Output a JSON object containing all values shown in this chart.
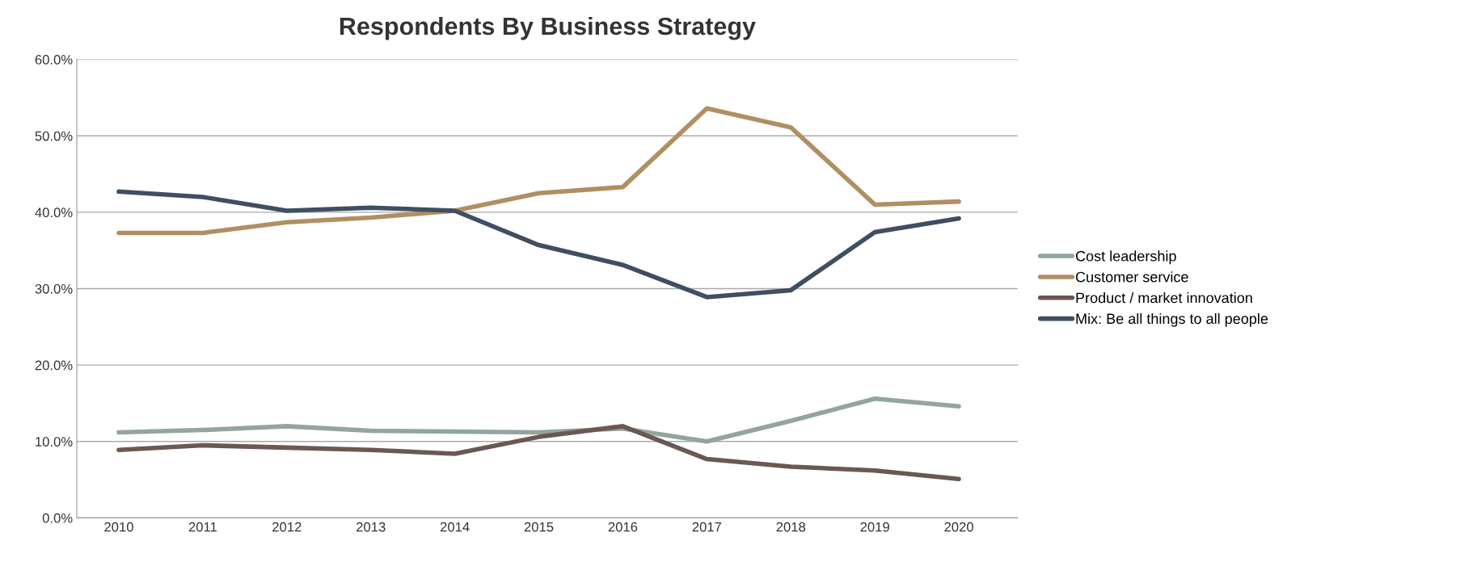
{
  "chart_data": {
    "type": "line",
    "title": "Respondents By Business Strategy",
    "categories": [
      "2010",
      "2011",
      "2012",
      "2013",
      "2014",
      "2015",
      "2016",
      "2017",
      "2018",
      "2019",
      "2020"
    ],
    "series": [
      {
        "name": "Cost leadership",
        "color": "#93a59c",
        "values": [
          11.2,
          11.5,
          12.0,
          11.4,
          11.3,
          11.2,
          11.7,
          10.0,
          12.7,
          15.6,
          14.6
        ]
      },
      {
        "name": "Customer service",
        "color": "#b08f63",
        "values": [
          37.3,
          37.3,
          38.7,
          39.3,
          40.2,
          42.5,
          43.3,
          53.6,
          51.1,
          41.0,
          41.4
        ]
      },
      {
        "name": "Product / market innovation",
        "color": "#6b5852",
        "values": [
          8.9,
          9.5,
          9.2,
          8.9,
          8.4,
          10.6,
          12.0,
          7.7,
          6.7,
          6.2,
          5.1
        ]
      },
      {
        "name": "Mix: Be all things to all people",
        "color": "#3f4f61",
        "values": [
          42.7,
          42.0,
          40.2,
          40.6,
          40.2,
          35.7,
          33.1,
          28.9,
          29.8,
          37.4,
          39.2
        ]
      }
    ],
    "ylim": [
      0,
      60
    ],
    "yticks": [
      {
        "value": 0,
        "label": "0.0%"
      },
      {
        "value": 10,
        "label": "10.0%"
      },
      {
        "value": 20,
        "label": "20.0%"
      },
      {
        "value": 30,
        "label": "30.0%"
      },
      {
        "value": 40,
        "label": "40.0%"
      },
      {
        "value": 50,
        "label": "50.0%"
      },
      {
        "value": 60,
        "label": "60.0%"
      }
    ],
    "grid": "y",
    "legend": "right",
    "marker": "none",
    "line_style": "solid"
  }
}
